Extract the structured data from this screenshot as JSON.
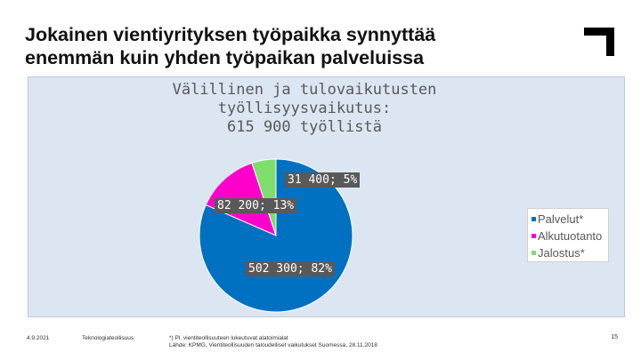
{
  "slide": {
    "title_line1": "Jokainen vientiyrityksen työpaikka synnyttää",
    "title_line2": "enemmän kuin yhden työpaikan palveluissa"
  },
  "colors": {
    "palvelut": "#0070c0",
    "alkutuotanto": "#ff00cc",
    "jalostus": "#7dde6b",
    "chart_background": "#dce6f2",
    "label_background": "#595959"
  },
  "chart_data": {
    "type": "pie",
    "title_lines": [
      "Välillinen ja tulovaikutusten",
      "työllisyysvaikutus:",
      "615 900 työllistä"
    ],
    "categories": [
      "Palvelut*",
      "Alkutuotanto",
      "Jalostus*"
    ],
    "values": [
      502300,
      82200,
      31400
    ],
    "percentages": [
      82,
      13,
      5
    ],
    "data_labels": [
      "502 300; 82%",
      "82 200; 13%",
      "31 400; 5%"
    ],
    "legend_position": "right"
  },
  "footer": {
    "date": "4.9.2021",
    "organization": "Teknologiateollisuus",
    "note_line1": "*) Pl. vientiteollisuuteen lukeutuvat alatoimialat",
    "note_line2": "Lähde: KPMG, Vientiteollisuuden taloudelliset vaikutukset Suomessa, 28.11.2018",
    "page_number": "15"
  }
}
